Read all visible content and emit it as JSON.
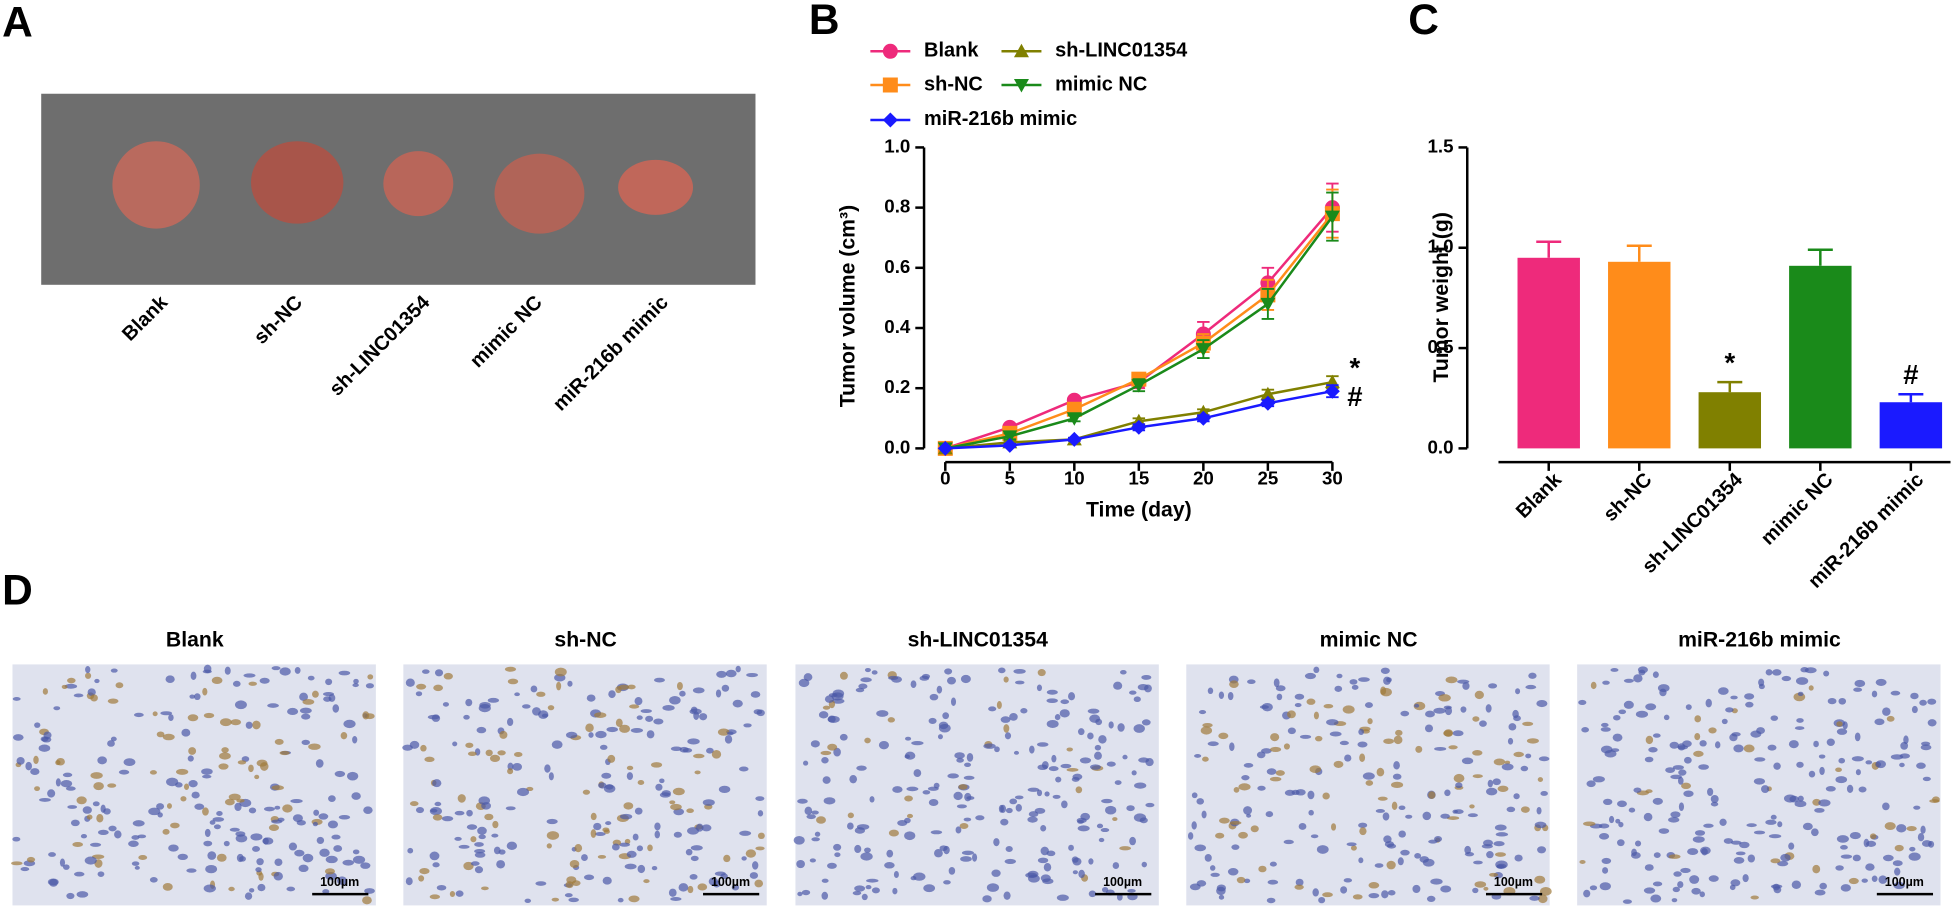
{
  "figure": {
    "panel_labels": [
      "A",
      "B",
      "C",
      "D"
    ],
    "tumor_labels": [
      "Blank",
      "sh-NC",
      "sh-LINC01354",
      "mimic NC",
      "miR-216b mimic"
    ],
    "histology_titles": [
      "Blank",
      "sh-NC",
      "sh-LINC01354",
      "mimic NC",
      "miR-216b mimic"
    ],
    "scale_bar": "100µm"
  },
  "chart_data": [
    {
      "type": "line",
      "xlabel": "Time (day)",
      "ylabel": "Tumor volume (cm³)",
      "x": [
        0,
        5,
        10,
        15,
        20,
        25,
        30
      ],
      "xlim": [
        0,
        30
      ],
      "xticks": [
        0,
        5,
        10,
        15,
        20,
        25,
        30
      ],
      "ylim": [
        0,
        1
      ],
      "yticks": [
        {
          "value": 0,
          "label": "0.0"
        },
        0.2,
        0.4,
        0.6,
        0.8,
        {
          "value": 1,
          "label": "1.0"
        }
      ],
      "series": [
        {
          "name": "Blank",
          "color": "#ee2a7b",
          "marker": "circle",
          "values": [
            0,
            0.07,
            0.16,
            0.22,
            0.38,
            0.55,
            0.8
          ],
          "errors": [
            0,
            0.01,
            0.01,
            0.02,
            0.04,
            0.05,
            0.08
          ]
        },
        {
          "name": "sh-NC",
          "color": "#ff8c1a",
          "marker": "square",
          "values": [
            0,
            0.05,
            0.13,
            0.23,
            0.35,
            0.51,
            0.78
          ],
          "errors": [
            0,
            0.01,
            0.01,
            0.02,
            0.03,
            0.05,
            0.08
          ]
        },
        {
          "name": "sh-LINC01354",
          "color": "#808000",
          "marker": "triangle-up",
          "values": [
            0,
            0.02,
            0.03,
            0.09,
            0.12,
            0.18,
            0.22
          ],
          "errors": [
            0,
            0.005,
            0.005,
            0.01,
            0.01,
            0.015,
            0.02
          ],
          "annotation": "*"
        },
        {
          "name": "mimic NC",
          "color": "#1a8a1a",
          "marker": "triangle-down",
          "values": [
            0,
            0.04,
            0.1,
            0.21,
            0.33,
            0.48,
            0.77
          ],
          "errors": [
            0,
            0.01,
            0.01,
            0.02,
            0.03,
            0.05,
            0.08
          ]
        },
        {
          "name": "miR-216b mimic",
          "color": "#1a1aff",
          "marker": "diamond",
          "values": [
            0,
            0.01,
            0.03,
            0.07,
            0.1,
            0.15,
            0.19
          ],
          "errors": [
            0,
            0.005,
            0.005,
            0.01,
            0.01,
            0.01,
            0.02
          ],
          "annotation": "#"
        }
      ]
    },
    {
      "type": "bar",
      "ylabel": "Tumor weight (g)",
      "categories": [
        "Blank",
        "sh-NC",
        "sh-LINC01354",
        "mimic NC",
        "miR-216b mimic"
      ],
      "values": [
        0.95,
        0.93,
        0.28,
        0.91,
        0.23
      ],
      "errors": [
        0.08,
        0.08,
        0.05,
        0.08,
        0.04
      ],
      "colors": [
        "#ee2a7b",
        "#ff8c1a",
        "#808000",
        "#1a8a1a",
        "#1a1aff"
      ],
      "annotations": [
        null,
        null,
        "*",
        null,
        "#"
      ],
      "ylim": [
        0,
        1.5
      ],
      "yticks": [
        {
          "value": 0,
          "label": "0.0"
        },
        0.5,
        {
          "value": 1,
          "label": "1.0"
        },
        1.5
      ]
    }
  ]
}
